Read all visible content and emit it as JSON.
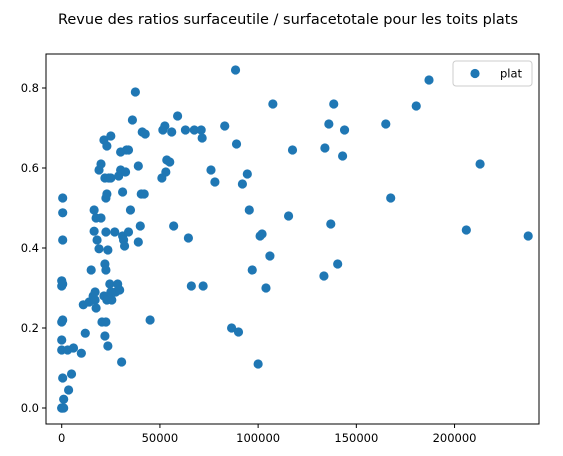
{
  "chart_data": {
    "type": "scatter",
    "title": "Revue des ratios surfaceutile / surfacetotale pour les toits plats",
    "xlabel": "",
    "ylabel": "",
    "xlim": [
      -8000,
      243000
    ],
    "ylim": [
      -0.04,
      0.885
    ],
    "x_ticks": [
      0,
      50000,
      100000,
      150000,
      200000
    ],
    "x_tick_labels": [
      "0",
      "50000",
      "100000",
      "150000",
      "200000"
    ],
    "y_ticks": [
      0.0,
      0.2,
      0.4,
      0.6,
      0.8
    ],
    "y_tick_labels": [
      "0.0",
      "0.2",
      "0.4",
      "0.6",
      "0.8"
    ],
    "grid": false,
    "legend": {
      "position": "top-right",
      "entries": [
        "plat"
      ]
    },
    "marker_color": "#1f77b4",
    "series": [
      {
        "name": "plat",
        "points": [
          [
            0,
            0.0
          ],
          [
            0,
            0.0
          ],
          [
            500,
            0.0
          ],
          [
            1000,
            0.0
          ],
          [
            1000,
            0.022
          ],
          [
            500,
            0.075
          ],
          [
            3500,
            0.045
          ],
          [
            5000,
            0.085
          ],
          [
            0,
            0.145
          ],
          [
            3000,
            0.145
          ],
          [
            6000,
            0.15
          ],
          [
            0,
            0.17
          ],
          [
            0,
            0.215
          ],
          [
            500,
            0.22
          ],
          [
            0,
            0.305
          ],
          [
            500,
            0.31
          ],
          [
            0,
            0.318
          ],
          [
            500,
            0.42
          ],
          [
            500,
            0.488
          ],
          [
            500,
            0.525
          ],
          [
            10000,
            0.137
          ],
          [
            12000,
            0.187
          ],
          [
            11000,
            0.258
          ],
          [
            14000,
            0.265
          ],
          [
            15000,
            0.345
          ],
          [
            16000,
            0.28
          ],
          [
            17000,
            0.27
          ],
          [
            17500,
            0.25
          ],
          [
            17000,
            0.29
          ],
          [
            16500,
            0.442
          ],
          [
            16500,
            0.495
          ],
          [
            17500,
            0.475
          ],
          [
            18000,
            0.42
          ],
          [
            19000,
            0.398
          ],
          [
            19000,
            0.595
          ],
          [
            20000,
            0.61
          ],
          [
            20000,
            0.475
          ],
          [
            20500,
            0.215
          ],
          [
            21500,
            0.28
          ],
          [
            22000,
            0.18
          ],
          [
            22500,
            0.215
          ],
          [
            23000,
            0.27
          ],
          [
            23500,
            0.155
          ],
          [
            22000,
            0.575
          ],
          [
            21500,
            0.67
          ],
          [
            23000,
            0.655
          ],
          [
            22500,
            0.525
          ],
          [
            23000,
            0.535
          ],
          [
            22500,
            0.44
          ],
          [
            22000,
            0.36
          ],
          [
            22500,
            0.345
          ],
          [
            23500,
            0.395
          ],
          [
            24000,
            0.575
          ],
          [
            25000,
            0.68
          ],
          [
            25000,
            0.575
          ],
          [
            24500,
            0.31
          ],
          [
            25000,
            0.29
          ],
          [
            25500,
            0.27
          ],
          [
            27000,
            0.44
          ],
          [
            27500,
            0.29
          ],
          [
            28500,
            0.31
          ],
          [
            29000,
            0.58
          ],
          [
            30000,
            0.64
          ],
          [
            30000,
            0.595
          ],
          [
            29500,
            0.295
          ],
          [
            30500,
            0.115
          ],
          [
            31000,
            0.43
          ],
          [
            31000,
            0.54
          ],
          [
            31500,
            0.42
          ],
          [
            32000,
            0.405
          ],
          [
            32500,
            0.59
          ],
          [
            33000,
            0.645
          ],
          [
            34000,
            0.44
          ],
          [
            34000,
            0.645
          ],
          [
            35000,
            0.495
          ],
          [
            36000,
            0.72
          ],
          [
            37500,
            0.79
          ],
          [
            39000,
            0.415
          ],
          [
            39000,
            0.605
          ],
          [
            40000,
            0.455
          ],
          [
            40500,
            0.535
          ],
          [
            41000,
            0.69
          ],
          [
            42000,
            0.535
          ],
          [
            42500,
            0.685
          ],
          [
            45000,
            0.22
          ],
          [
            51000,
            0.575
          ],
          [
            51500,
            0.695
          ],
          [
            52500,
            0.705
          ],
          [
            53000,
            0.59
          ],
          [
            53500,
            0.62
          ],
          [
            55000,
            0.615
          ],
          [
            56000,
            0.69
          ],
          [
            57000,
            0.455
          ],
          [
            59000,
            0.73
          ],
          [
            63000,
            0.695
          ],
          [
            64500,
            0.425
          ],
          [
            66000,
            0.305
          ],
          [
            67500,
            0.695
          ],
          [
            71000,
            0.695
          ],
          [
            71500,
            0.675
          ],
          [
            72000,
            0.305
          ],
          [
            76000,
            0.595
          ],
          [
            78000,
            0.565
          ],
          [
            83000,
            0.705
          ],
          [
            86500,
            0.2
          ],
          [
            88500,
            0.845
          ],
          [
            89000,
            0.66
          ],
          [
            90000,
            0.19
          ],
          [
            92000,
            0.56
          ],
          [
            94500,
            0.585
          ],
          [
            95500,
            0.495
          ],
          [
            97000,
            0.345
          ],
          [
            100000,
            0.11
          ],
          [
            101000,
            0.43
          ],
          [
            102000,
            0.435
          ],
          [
            104000,
            0.3
          ],
          [
            106000,
            0.38
          ],
          [
            107500,
            0.76
          ],
          [
            115500,
            0.48
          ],
          [
            117500,
            0.645
          ],
          [
            133500,
            0.33
          ],
          [
            134000,
            0.65
          ],
          [
            136000,
            0.71
          ],
          [
            137000,
            0.46
          ],
          [
            138500,
            0.76
          ],
          [
            140500,
            0.36
          ],
          [
            143000,
            0.63
          ],
          [
            144000,
            0.695
          ],
          [
            165000,
            0.71
          ],
          [
            167500,
            0.525
          ],
          [
            180500,
            0.755
          ],
          [
            187000,
            0.82
          ],
          [
            206000,
            0.445
          ],
          [
            213000,
            0.61
          ],
          [
            237500,
            0.43
          ]
        ]
      }
    ]
  }
}
